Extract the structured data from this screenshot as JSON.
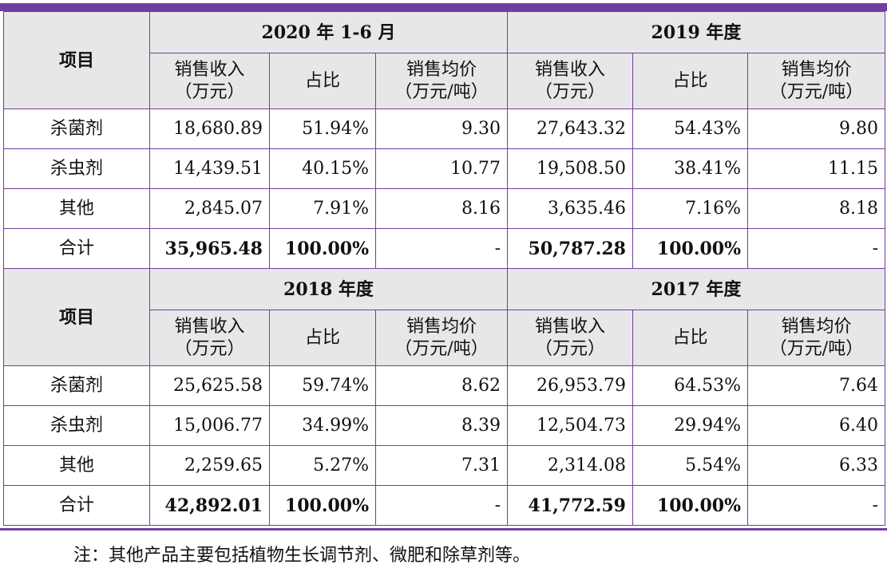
{
  "headers": {
    "item": "项目",
    "sales_revenue_l1": "销售收入",
    "sales_revenue_l2": "（万元）",
    "share": "占比",
    "avg_price_l1": "销售均价",
    "avg_price_l2": "（万元/吨）"
  },
  "blocks": [
    {
      "periods": [
        "2020 年 1-6 月",
        "2019 年度"
      ],
      "rows": [
        {
          "name": "杀菌剂",
          "a_rev": "18,680.89",
          "a_share": "51.94%",
          "a_price": "9.30",
          "b_rev": "27,643.32",
          "b_share": "54.43%",
          "b_price": "9.80"
        },
        {
          "name": "杀虫剂",
          "a_rev": "14,439.51",
          "a_share": "40.15%",
          "a_price": "10.77",
          "b_rev": "19,508.50",
          "b_share": "38.41%",
          "b_price": "11.15"
        },
        {
          "name": "其他",
          "a_rev": "2,845.07",
          "a_share": "7.91%",
          "a_price": "8.16",
          "b_rev": "3,635.46",
          "b_share": "7.16%",
          "b_price": "8.18"
        },
        {
          "name": "合计",
          "a_rev": "35,965.48",
          "a_share": "100.00%",
          "a_price": "-",
          "b_rev": "50,787.28",
          "b_share": "100.00%",
          "b_price": "-"
        }
      ]
    },
    {
      "periods": [
        "2018 年度",
        "2017 年度"
      ],
      "rows": [
        {
          "name": "杀菌剂",
          "a_rev": "25,625.58",
          "a_share": "59.74%",
          "a_price": "8.62",
          "b_rev": "26,953.79",
          "b_share": "64.53%",
          "b_price": "7.64"
        },
        {
          "name": "杀虫剂",
          "a_rev": "15,006.77",
          "a_share": "34.99%",
          "a_price": "8.39",
          "b_rev": "12,504.73",
          "b_share": "29.94%",
          "b_price": "6.40"
        },
        {
          "name": "其他",
          "a_rev": "2,259.65",
          "a_share": "5.27%",
          "a_price": "7.31",
          "b_rev": "2,314.08",
          "b_share": "5.54%",
          "b_price": "6.33"
        },
        {
          "name": "合计",
          "a_rev": "42,892.01",
          "a_share": "100.00%",
          "a_price": "-",
          "b_rev": "41,772.59",
          "b_share": "100.00%",
          "b_price": "-"
        }
      ]
    }
  ],
  "note": "注：其他产品主要包括植物生长调节剂、微肥和除草剂等。",
  "colors": {
    "rule": "#6f3fa0",
    "header_bg": "#e7e7e7"
  }
}
